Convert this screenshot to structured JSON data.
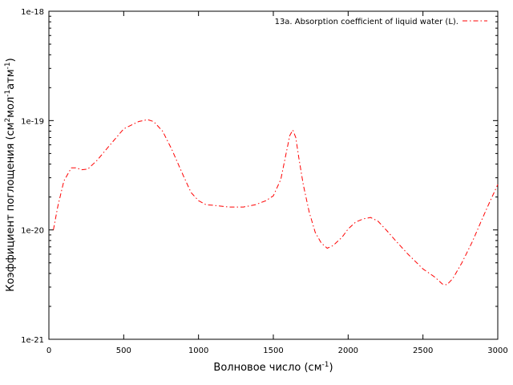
{
  "chart_data": {
    "type": "line",
    "title": "",
    "xlabel": {
      "main": "Волновое число (см",
      "sup": "-1",
      "end": ")"
    },
    "ylabel": {
      "p1": "Коэффициент поглощения (см",
      "s1": "2",
      "p2": "мол",
      "s2": "-1",
      "p3": "атм",
      "s3": "-1",
      "p4": ")"
    },
    "xlim": [
      0,
      3000
    ],
    "ylim": [
      1e-21,
      1e-18
    ],
    "yscale": "log",
    "x_ticks": [
      "0",
      "500",
      "1000",
      "1500",
      "2000",
      "2500",
      "3000"
    ],
    "y_ticks": [
      "1e-21",
      "1e-20",
      "1e-19",
      "1e-18"
    ],
    "grid": false,
    "legend_position": "top-right",
    "series": [
      {
        "name": "13a. Absorption coefficient of liquid water (L).",
        "color": "#ff0000",
        "dash": "dash-dot",
        "x": [
          30,
          60,
          100,
          150,
          180,
          220,
          260,
          320,
          400,
          500,
          600,
          660,
          700,
          760,
          820,
          900,
          950,
          1000,
          1050,
          1100,
          1200,
          1300,
          1380,
          1450,
          1500,
          1550,
          1580,
          1610,
          1630,
          1650,
          1670,
          1700,
          1740,
          1780,
          1820,
          1860,
          1900,
          1960,
          2000,
          2050,
          2100,
          2150,
          2200,
          2260,
          2320,
          2400,
          2500,
          2580,
          2630,
          2660,
          2700,
          2760,
          2830,
          2900,
          2950,
          3000
        ],
        "y": [
          1e-20,
          1.65e-20,
          2.8e-20,
          3.7e-20,
          3.7e-20,
          3.55e-20,
          3.6e-20,
          4.3e-20,
          5.8e-20,
          8.4e-20,
          9.8e-20,
          1.02e-19,
          9.8e-20,
          8e-20,
          5.5e-20,
          3.1e-20,
          2.2e-20,
          1.85e-20,
          1.7e-20,
          1.68e-20,
          1.62e-20,
          1.62e-20,
          1.7e-20,
          1.85e-20,
          2.05e-20,
          2.9e-20,
          4.6e-20,
          7.3e-20,
          8.2e-20,
          7e-20,
          4.6e-20,
          2.6e-20,
          1.45e-20,
          9.5e-21,
          7.6e-21,
          6.8e-21,
          7.2e-21,
          8.6e-21,
          1.02e-20,
          1.18e-20,
          1.26e-20,
          1.3e-20,
          1.2e-20,
          9.8e-21,
          7.9e-21,
          6e-21,
          4.4e-21,
          3.7e-21,
          3.2e-21,
          3.15e-21,
          3.6e-21,
          5e-21,
          7.8e-21,
          1.3e-20,
          1.85e-20,
          2.6e-20
        ]
      }
    ]
  }
}
